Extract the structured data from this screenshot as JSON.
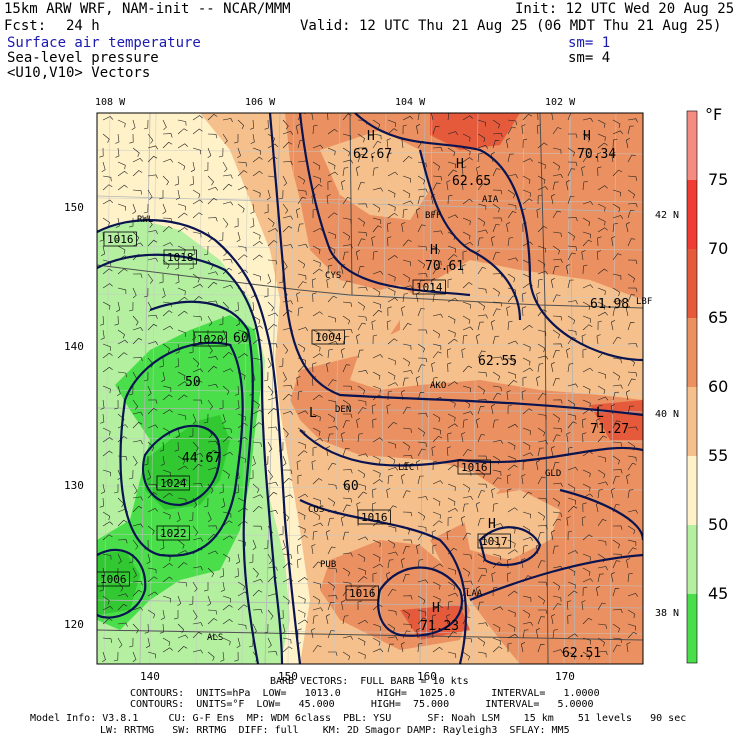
{
  "header": {
    "model_line": "15km ARW WRF, NAM-init -- NCAR/MMM",
    "init_line": "Init: 12 UTC Wed 20 Aug 25",
    "fcst_label": "Fcst:",
    "fcst_value": "24 h",
    "valid_line": "Valid: 12 UTC Thu 21 Aug 25 (06 MDT Thu 21 Aug 25)",
    "fields": [
      {
        "name": "Surface air temperature",
        "sm": "sm= 1"
      },
      {
        "name": "Sea-level pressure",
        "sm": "sm= 4"
      },
      {
        "name": "<U10,V10> Vectors",
        "sm": ""
      }
    ]
  },
  "colors": {
    "t45": "#4ade4a",
    "t50": "#b4f0a0",
    "t55": "#fff2c8",
    "t60": "#f5c08c",
    "t65": "#eb9060",
    "t70": "#e65a3c",
    "t75": "#f03c32",
    "t80": "#f58c82",
    "contour": "#0a1450",
    "grid": "#b4b4b4",
    "border": "#505050"
  },
  "map": {
    "top_lon_labels": [
      "108 W",
      "106 W",
      "104 W",
      "102 W"
    ],
    "left_labels": [
      "150",
      "140",
      "130",
      "120"
    ],
    "bottom_labels": [
      "140",
      "150",
      "160",
      "170"
    ],
    "right_lat_labels": [
      "42 N",
      "40 N",
      "38 N"
    ],
    "pressure_labels": [
      "1016",
      "1018",
      "1020",
      "1022",
      "1024",
      "1014",
      "1004",
      "1016",
      "1016",
      "1017",
      "1016",
      "1006"
    ],
    "temp_labels": [
      "62.67",
      "62.65",
      "70.34",
      "70.61",
      "61.98",
      "62.55",
      "71.27",
      "60",
      "50",
      "60",
      "71.23",
      "62.51",
      "44.67"
    ],
    "city_labels": [
      "BFF",
      "CYS",
      "AKO",
      "DEN",
      "GLD",
      "LIC",
      "COS",
      "PUB",
      "LAA",
      "ALS",
      "RWL",
      "LBF",
      "AIA"
    ],
    "hl_labels": [
      "H",
      "H",
      "H",
      "H",
      "L",
      "L",
      "H",
      "H"
    ]
  },
  "colorbar": {
    "unit": "°F",
    "ticks": [
      "75",
      "70",
      "65",
      "60",
      "55",
      "50",
      "45"
    ]
  },
  "footer": {
    "barb_line": "BARB VECTORS:  FULL BARB = 10 kts",
    "contour_line1": "CONTOURS:  UNITS=hPa  LOW=   1013.0      HIGH=  1025.0      INTERVAL=   1.0000",
    "contour_line2": "CONTOURS:  UNITS=°F  LOW=   45.000      HIGH=  75.000      INTERVAL=   5.0000",
    "model_info1": "Model Info: V3.8.1     CU: G-F Ens  MP: WDM 6class  PBL: YSU      SF: Noah LSM    15 km    51 levels   90 sec",
    "model_info2": "LW: RRTMG   SW: RRTMG  DIFF: full    KM: 2D Smagor DAMP: Rayleigh3  SFLAY: MM5"
  }
}
